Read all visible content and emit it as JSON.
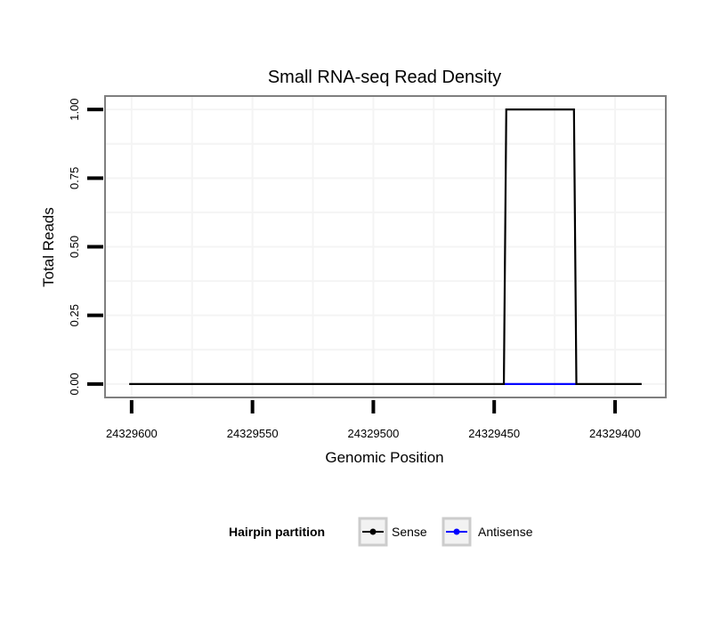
{
  "chart_data": {
    "type": "line",
    "title": "Small RNA-seq Read Density",
    "xlabel": "Genomic Position",
    "ylabel": "Total Reads",
    "xlim": [
      24329611,
      24329379
    ],
    "ylim": [
      -0.049,
      1.049
    ],
    "x_reversed": true,
    "grid": true,
    "x_ticks": [
      24329600,
      24329550,
      24329500,
      24329450,
      24329400
    ],
    "x_tick_labels": [
      "24329600",
      "24329550",
      "24329500",
      "24329450",
      "24329400"
    ],
    "y_ticks": [
      0,
      0.25,
      0.5,
      0.75,
      1
    ],
    "y_tick_labels": [
      "0.00",
      "0.25",
      "0.50",
      "0.75",
      "1.00"
    ],
    "legend": {
      "title": "Hairpin partition",
      "placement": "bottom"
    },
    "series": [
      {
        "name": "Sense",
        "color": "#000000",
        "x": [
          24329601,
          24329446,
          24329445,
          24329417,
          24329416,
          24329389
        ],
        "y": [
          0,
          0,
          1,
          1,
          0,
          0
        ]
      },
      {
        "name": "Antisense",
        "color": "#0000ff",
        "x": [
          24329446,
          24329416
        ],
        "y": [
          0,
          0
        ]
      }
    ]
  }
}
